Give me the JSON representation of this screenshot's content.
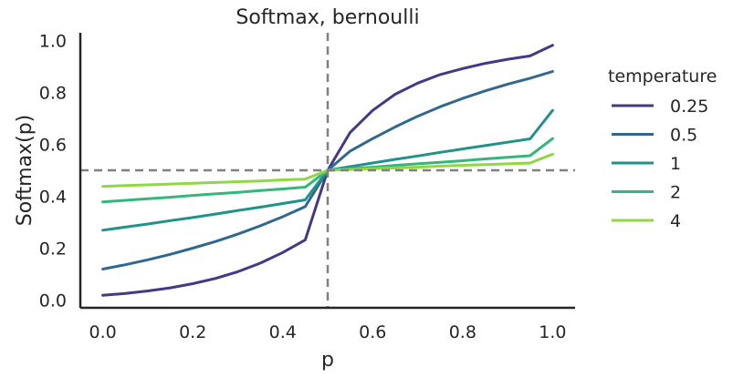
{
  "chart_data": {
    "type": "line",
    "title": "Softmax, bernoulli",
    "xlabel": "p",
    "ylabel": "Softmax(p)",
    "xlim": [
      -0.05,
      1.05
    ],
    "ylim": [
      -0.03,
      1.03
    ],
    "xticks": [
      "0.0",
      "0.2",
      "0.4",
      "0.6",
      "0.8",
      "1.0"
    ],
    "yticks": [
      "0.0",
      "0.2",
      "0.4",
      "0.6",
      "0.8",
      "1.0"
    ],
    "grid": false,
    "legend": {
      "title": "temperature",
      "placement": "right, outside"
    },
    "reference_lines": [
      {
        "orientation": "vertical",
        "x": 0.5,
        "style": "dashed",
        "color": "#808080"
      },
      {
        "orientation": "horizontal",
        "y": 0.5,
        "style": "dashed",
        "color": "#808080"
      }
    ],
    "x": [
      0.0,
      0.05,
      0.1,
      0.15,
      0.2,
      0.25,
      0.3,
      0.35,
      0.4,
      0.45,
      0.5,
      0.55,
      0.6,
      0.65,
      0.7,
      0.75,
      0.8,
      0.85,
      0.9,
      0.95,
      1.0
    ],
    "series": [
      {
        "name": "0.25",
        "color": "#443983",
        "values": [
          0.018,
          0.025,
          0.035,
          0.047,
          0.063,
          0.083,
          0.109,
          0.142,
          0.183,
          0.232,
          0.5,
          0.646,
          0.731,
          0.793,
          0.836,
          0.869,
          0.892,
          0.912,
          0.928,
          0.941,
          0.982
        ]
      },
      {
        "name": "0.5",
        "color": "#31688e",
        "values": [
          0.119,
          0.136,
          0.155,
          0.176,
          0.2,
          0.225,
          0.254,
          0.286,
          0.321,
          0.36,
          0.5,
          0.574,
          0.622,
          0.667,
          0.708,
          0.745,
          0.777,
          0.806,
          0.832,
          0.855,
          0.881
        ]
      },
      {
        "name": "1",
        "color": "#21918c",
        "values": [
          0.269,
          0.281,
          0.293,
          0.306,
          0.318,
          0.331,
          0.345,
          0.358,
          0.372,
          0.386,
          0.5,
          0.514,
          0.528,
          0.542,
          0.555,
          0.569,
          0.582,
          0.595,
          0.608,
          0.621,
          0.731
        ]
      },
      {
        "name": "2",
        "color": "#35b779",
        "values": [
          0.378,
          0.384,
          0.39,
          0.396,
          0.403,
          0.409,
          0.415,
          0.422,
          0.428,
          0.435,
          0.5,
          0.506,
          0.512,
          0.519,
          0.525,
          0.531,
          0.537,
          0.544,
          0.55,
          0.556,
          0.622
        ]
      },
      {
        "name": "4",
        "color": "#90d743",
        "values": [
          0.438,
          0.441,
          0.444,
          0.447,
          0.45,
          0.453,
          0.456,
          0.459,
          0.463,
          0.466,
          0.5,
          0.503,
          0.506,
          0.509,
          0.512,
          0.516,
          0.519,
          0.522,
          0.525,
          0.528,
          0.562
        ]
      }
    ]
  }
}
